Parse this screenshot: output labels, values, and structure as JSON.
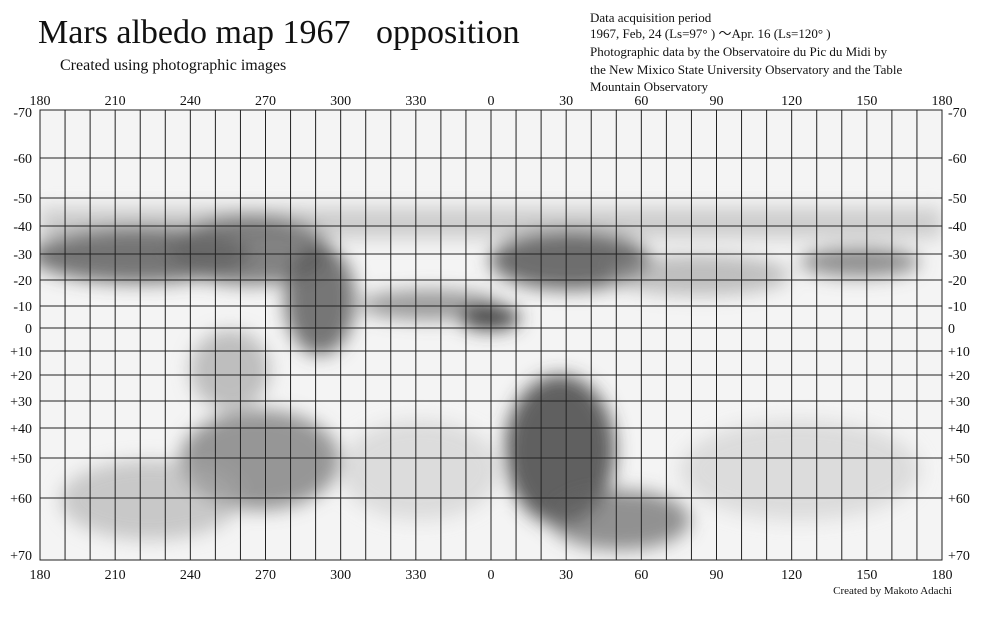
{
  "header": {
    "title": "Mars albedo map 1967   opposition",
    "subtitle": "Created using photographic images",
    "info": [
      "Data acquisition period",
      "1967, Feb, 24 (Ls=97° ) ～Apr. 16 (Ls=120° )",
      "Photographic data by the Observatoire du Pic du Midi by",
      "the New Mixico State University Observatory and the Table",
      "Mountain Observatory"
    ]
  },
  "map": {
    "longitude_labels": [
      "180",
      "210",
      "240",
      "270",
      "300",
      "330",
      "0",
      "30",
      "60",
      "90",
      "120",
      "150",
      "180"
    ],
    "latitude_labels": [
      "-70",
      "-60",
      "-50",
      "-40",
      "-30",
      "-20",
      "-10",
      "0",
      "+10",
      "+20",
      "+30",
      "+40",
      "+50",
      "+60",
      "+70"
    ]
  },
  "credit": "Created by Makoto Adachi"
}
